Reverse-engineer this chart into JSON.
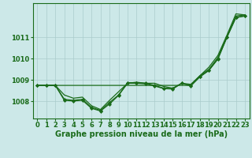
{
  "background_color": "#cce8e8",
  "grid_color": "#aacccc",
  "line_color": "#1a6b1a",
  "marker_color": "#1a6b1a",
  "xlabel": "Graphe pression niveau de la mer (hPa)",
  "xlabel_fontsize": 7,
  "tick_fontsize": 6,
  "xlim": [
    -0.5,
    23.5
  ],
  "ylim": [
    1007.2,
    1012.6
  ],
  "ytick_values": [
    1008,
    1009,
    1010,
    1011
  ],
  "ytick_labels": [
    "1008",
    "1009",
    "1010",
    "1011"
  ],
  "xticks": [
    0,
    1,
    2,
    3,
    4,
    5,
    6,
    7,
    8,
    9,
    10,
    11,
    12,
    13,
    14,
    15,
    16,
    17,
    18,
    19,
    20,
    21,
    22,
    23
  ],
  "series": [
    {
      "y": [
        1008.75,
        1008.75,
        1008.75,
        1008.75,
        1008.75,
        1008.75,
        1008.75,
        1008.75,
        1008.75,
        1008.75,
        1008.75,
        1008.75,
        1008.75,
        1008.75,
        1008.75,
        1008.75,
        1008.75,
        1008.75,
        1009.2,
        1009.6,
        1010.15,
        1011.1,
        1012.1,
        1012.05
      ],
      "marker": false,
      "linewidth": 0.9,
      "zorder": 2
    },
    {
      "y": [
        1008.75,
        1008.75,
        1008.75,
        1008.3,
        1008.15,
        1008.2,
        1007.8,
        1007.62,
        1008.05,
        1008.45,
        1008.85,
        1008.9,
        1008.85,
        1008.85,
        1008.7,
        1008.62,
        1008.85,
        1008.8,
        1009.2,
        1009.5,
        1010.05,
        1011.05,
        1012.0,
        1012.05
      ],
      "marker": false,
      "linewidth": 0.9,
      "zorder": 2
    },
    {
      "y": [
        1008.75,
        1008.75,
        1008.75,
        1008.1,
        1008.05,
        1008.1,
        1007.72,
        1007.58,
        1007.95,
        1008.3,
        1008.88,
        1008.88,
        1008.85,
        1008.75,
        1008.62,
        1008.6,
        1008.85,
        1008.75,
        1009.15,
        1009.45,
        1010.0,
        1011.0,
        1011.95,
        1012.0
      ],
      "marker": true,
      "linewidth": 0.9,
      "zorder": 3
    },
    {
      "y": [
        1008.75,
        1008.75,
        1008.75,
        1008.05,
        1008.02,
        1008.05,
        1007.68,
        1007.55,
        1007.88,
        1008.28,
        1008.85,
        1008.85,
        1008.82,
        1008.72,
        1008.6,
        1008.58,
        1008.85,
        1008.72,
        1009.15,
        1009.45,
        1009.98,
        1011.0,
        1011.92,
        1012.0
      ],
      "marker": true,
      "linewidth": 0.9,
      "zorder": 3
    }
  ],
  "marker_size": 2.0,
  "marker_style": "D"
}
